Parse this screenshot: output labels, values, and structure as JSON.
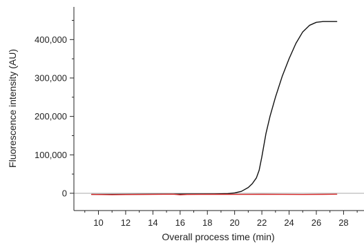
{
  "chart_data": {
    "type": "line",
    "title": "",
    "xlabel": "Overall process time (min)",
    "ylabel": "Fluorescence intensity (AU)",
    "xlim": [
      8.2,
      29.5
    ],
    "ylim": [
      -45000,
      485000
    ],
    "x_ticks": [
      10,
      12,
      14,
      16,
      18,
      20,
      22,
      24,
      26,
      28
    ],
    "x_tick_labels": [
      "10",
      "12",
      "14",
      "16",
      "18",
      "20",
      "22",
      "24",
      "26",
      "28"
    ],
    "y_ticks": [
      0,
      100000,
      200000,
      300000,
      400000
    ],
    "y_tick_labels": [
      "0",
      "100,000",
      "200,000",
      "300,000",
      "400,000"
    ],
    "baseline": 0,
    "grid": false,
    "legend": "none",
    "colors": {
      "series_black": "#111111",
      "series_red": "#d62728",
      "baseline": "#aaaaaa",
      "axis": "#222222"
    },
    "series": [
      {
        "color": "#111111",
        "x": [
          9.5,
          11,
          12.5,
          14,
          15.5,
          17,
          18.5,
          19.5,
          20.0,
          20.5,
          21.0,
          21.3,
          21.6,
          21.8,
          22.0,
          22.3,
          22.6,
          23.0,
          23.5,
          24.0,
          24.5,
          25.0,
          25.5,
          26.0,
          26.5,
          27.0,
          27.5
        ],
        "y": [
          -3000,
          -3000,
          -2800,
          -2500,
          -2300,
          -2000,
          -1800,
          -1000,
          1000,
          5000,
          15000,
          25000,
          40000,
          60000,
          95000,
          155000,
          200000,
          250000,
          305000,
          350000,
          390000,
          420000,
          437000,
          445000,
          447000,
          447000,
          447000
        ]
      },
      {
        "color": "#d62728",
        "x": [
          9.5,
          11,
          12.5,
          14,
          15.5,
          16.0,
          16.5,
          17.5,
          19,
          20.5,
          22,
          23.5,
          25,
          26.5,
          27.5
        ],
        "y": [
          -3000,
          -3800,
          -3200,
          -3000,
          -2500,
          -4000,
          -3200,
          -3000,
          -2800,
          -3000,
          -2800,
          -3000,
          -3200,
          -2800,
          -2500
        ]
      }
    ]
  }
}
